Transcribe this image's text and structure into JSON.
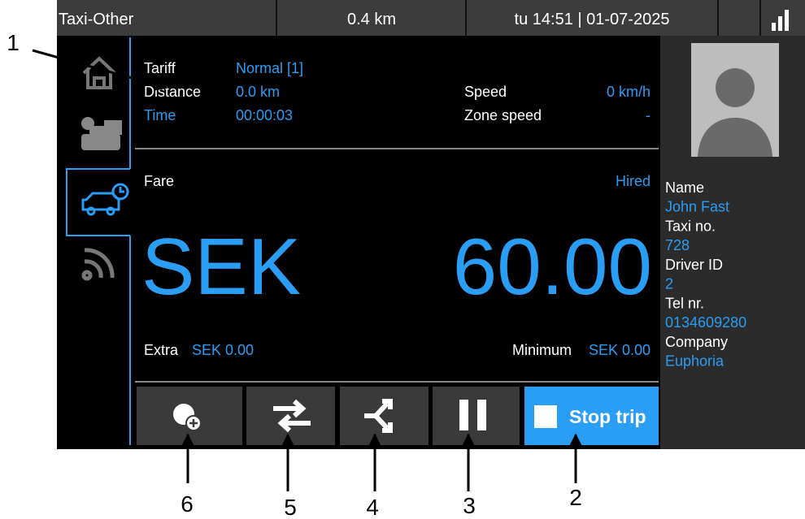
{
  "status_bar": {
    "profile": "Taxi-Other",
    "distance": "0.4 km",
    "datetime": "tu 14:51 | 01-07-2025"
  },
  "trip_info": {
    "rows": [
      {
        "label": "Tariff",
        "value": "Normal [1]"
      },
      {
        "label": "Distance",
        "value": "0.0 km"
      },
      {
        "label": "Time",
        "value": "00:00:03"
      }
    ],
    "speed": {
      "label": "Speed",
      "value": "0 km/h"
    },
    "zone_speed": {
      "label": "Zone speed",
      "value": "-"
    }
  },
  "fare": {
    "label": "Fare",
    "status": "Hired",
    "currency": "SEK",
    "amount": "60.00",
    "extra_label": "Extra",
    "extra_value": "SEK 0.00",
    "minimum_label": "Minimum",
    "minimum_value": "SEK 0.00"
  },
  "buttons": {
    "stop_trip": "Stop trip"
  },
  "driver": [
    {
      "label": "Name",
      "value": "John Fast"
    },
    {
      "label": "Taxi no.",
      "value": "728"
    },
    {
      "label": "Driver ID",
      "value": "2"
    },
    {
      "label": "Tel nr.",
      "value": "0134609280"
    },
    {
      "label": "Company",
      "value": "Euphoria"
    }
  ],
  "callouts": [
    "1",
    "2",
    "3",
    "4",
    "5",
    "6"
  ]
}
